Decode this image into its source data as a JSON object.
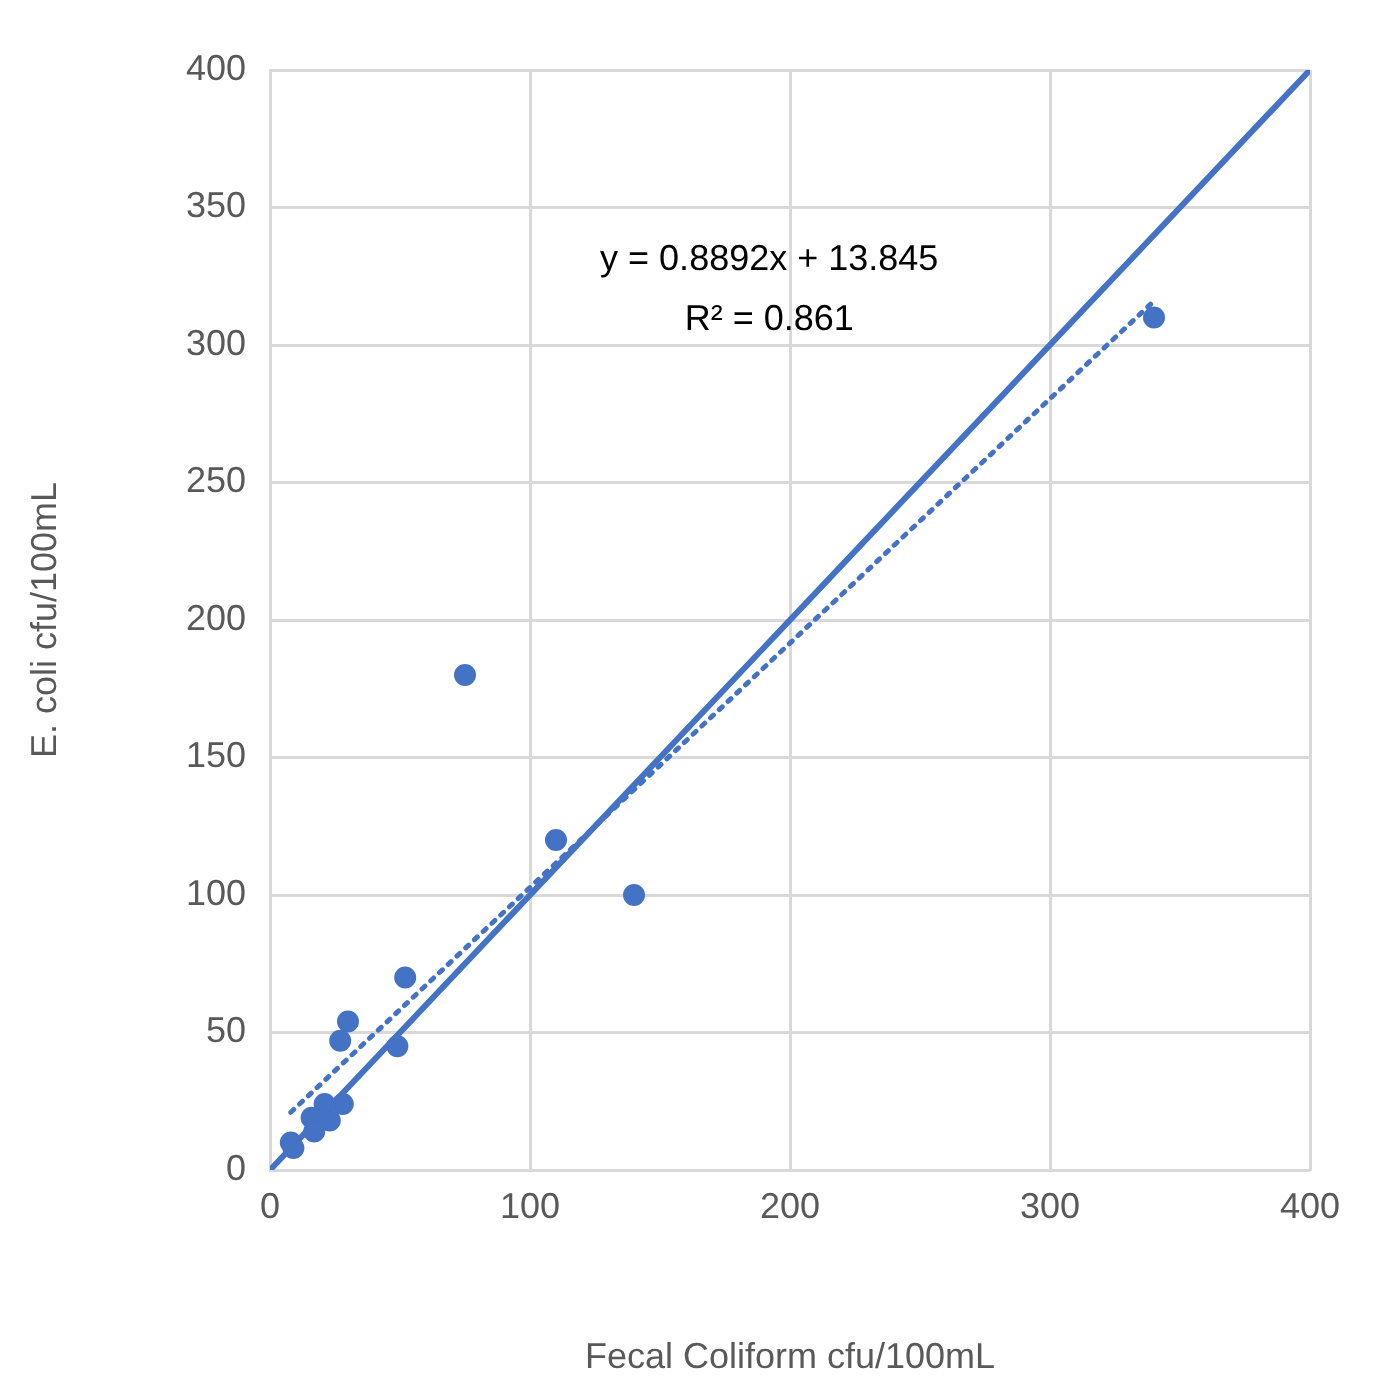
{
  "chart_data": {
    "type": "scatter",
    "xlabel": "Fecal Coliform cfu/100mL",
    "ylabel": "E. coli cfu/100mL",
    "xlim": [
      0,
      400
    ],
    "xticks": [
      0,
      100,
      200,
      300,
      400
    ],
    "ylim": [
      0,
      400
    ],
    "yticks": [
      0,
      50,
      100,
      150,
      200,
      250,
      300,
      350,
      400
    ],
    "grid": true,
    "legend": false,
    "marker": "circle",
    "series": [
      {
        "color": "#4472c4",
        "x": [
          52,
          30,
          27,
          49,
          28,
          21,
          16,
          23,
          17,
          8,
          9,
          140,
          110,
          75,
          340
        ],
        "values": [
          70,
          54,
          47,
          45,
          24,
          24,
          19,
          18,
          14,
          10,
          8,
          100,
          120,
          180,
          310
        ]
      },
      {
        "type": "line",
        "color": "#4472c4",
        "line_style": "solid",
        "marker": "none",
        "x": [
          0,
          400
        ],
        "values": [
          0,
          400
        ]
      },
      {
        "type": "line",
        "color": "#4472c4",
        "line_style": "dotted",
        "marker": "none",
        "x": [
          8,
          340
        ],
        "values": [
          21,
          316
        ]
      }
    ],
    "annotations": [
      "y = 0.8892x + 13.845",
      "R² = 0.861"
    ]
  }
}
